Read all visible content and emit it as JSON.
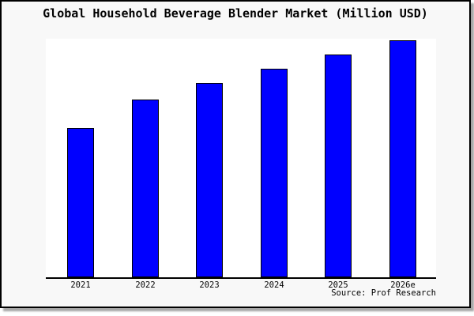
{
  "window": {
    "background_color": "#f8f8f8",
    "plot_background_color": "#ffffff",
    "border_color": "#000000",
    "shadow_color": "#aaaaaa",
    "text_color": "#000000"
  },
  "chart_data": {
    "type": "bar",
    "title": "Global Household Beverage Blender Market (Million USD)",
    "categories": [
      "2021",
      "2022",
      "2023",
      "2024",
      "2025",
      "2026e"
    ],
    "values": [
      63,
      75,
      82,
      88,
      94,
      100
    ],
    "values_note": "relative bar heights; no y-axis tick labels shown, tallest bar (2026e) = 100",
    "series_count": 1,
    "bar_color": "#0000ff",
    "bar_border_color": "#000000",
    "xlabel": "",
    "ylabel": "",
    "y_axis_labels_shown": false,
    "grid": false,
    "legend": "none",
    "source_note": "Source: Prof Research"
  }
}
